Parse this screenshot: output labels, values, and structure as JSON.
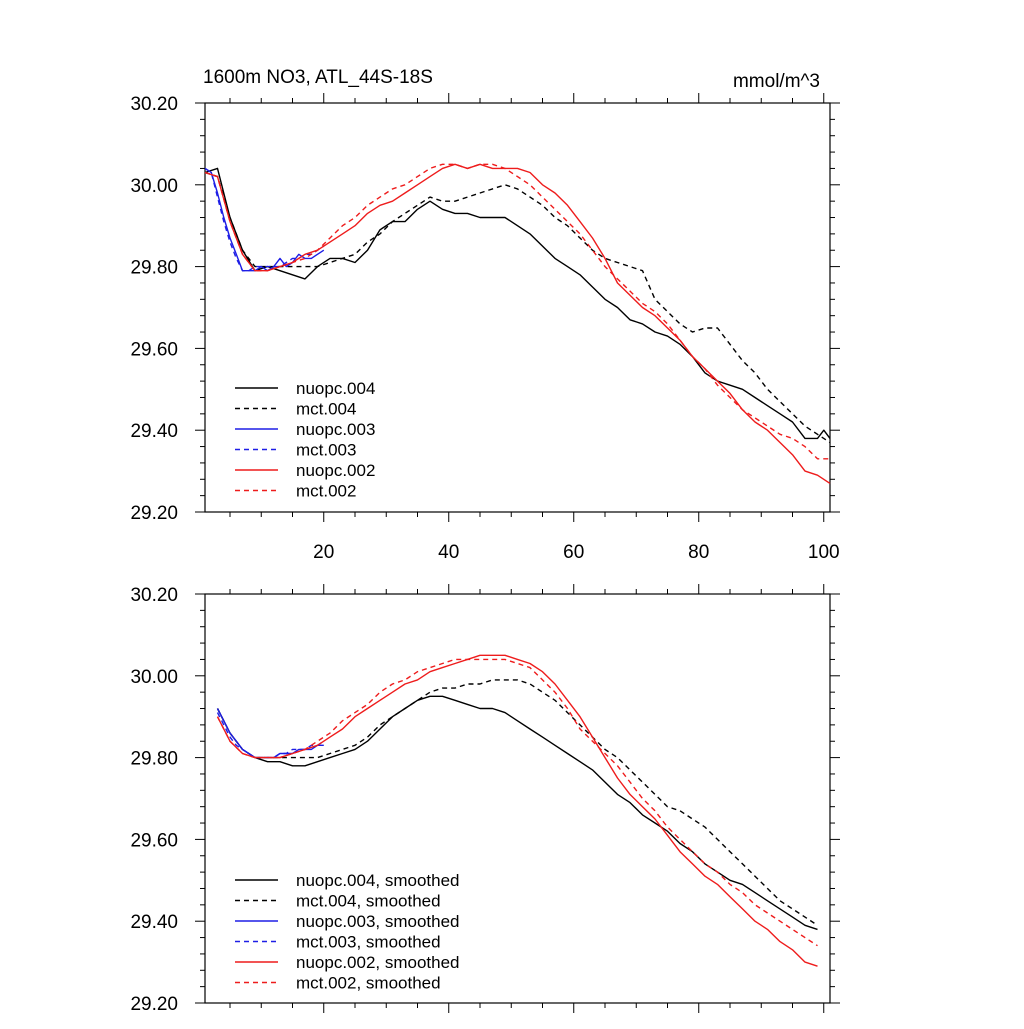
{
  "title_left": "1600m NO3, ATL_44S-18S",
  "title_right": "mmol/m^3",
  "colors": {
    "black": "#000000",
    "blue": "#1e1ee6",
    "red": "#ee1c1c"
  },
  "chart_data": [
    {
      "type": "line",
      "title": "1600m NO3, ATL_44S-18S",
      "units": "mmol/m^3",
      "xlim": [
        1,
        101
      ],
      "ylim": [
        29.2,
        30.2
      ],
      "xticks": [
        "20",
        "40",
        "60",
        "80",
        "100"
      ],
      "yticks": [
        "30.20",
        "30.00",
        "29.80",
        "29.60",
        "29.40",
        "29.20"
      ],
      "legend_position": "lower-left",
      "series": [
        {
          "name": "nuopc.004",
          "color": "#000000",
          "dash": "solid",
          "x": [
            1,
            3,
            5,
            7,
            9,
            11,
            13,
            15,
            17,
            19,
            21,
            23,
            25,
            27,
            29,
            31,
            33,
            35,
            37,
            39,
            41,
            43,
            45,
            47,
            49,
            51,
            53,
            55,
            57,
            59,
            61,
            63,
            65,
            67,
            69,
            71,
            73,
            75,
            77,
            79,
            81,
            83,
            85,
            87,
            89,
            91,
            93,
            95,
            97,
            99,
            100,
            101
          ],
          "y": [
            30.03,
            30.04,
            29.92,
            29.84,
            29.79,
            29.8,
            29.79,
            29.78,
            29.77,
            29.8,
            29.82,
            29.82,
            29.81,
            29.84,
            29.89,
            29.91,
            29.91,
            29.94,
            29.96,
            29.94,
            29.93,
            29.93,
            29.92,
            29.92,
            29.92,
            29.9,
            29.88,
            29.85,
            29.82,
            29.8,
            29.78,
            29.75,
            29.72,
            29.7,
            29.67,
            29.66,
            29.64,
            29.63,
            29.61,
            29.58,
            29.54,
            29.52,
            29.51,
            29.5,
            29.48,
            29.46,
            29.44,
            29.42,
            29.38,
            29.38,
            29.4,
            29.38
          ]
        },
        {
          "name": "mct.004",
          "color": "#000000",
          "dash": "dashed",
          "x": [
            1,
            3,
            5,
            7,
            9,
            11,
            13,
            15,
            17,
            19,
            21,
            23,
            25,
            27,
            29,
            31,
            33,
            35,
            37,
            39,
            41,
            43,
            45,
            47,
            49,
            51,
            53,
            55,
            57,
            59,
            61,
            63,
            65,
            67,
            69,
            71,
            73,
            75,
            77,
            79,
            81,
            83,
            85,
            87,
            89,
            91,
            93,
            95,
            97,
            99,
            101
          ],
          "y": [
            30.03,
            30.02,
            29.92,
            29.84,
            29.8,
            29.8,
            29.8,
            29.8,
            29.8,
            29.8,
            29.81,
            29.82,
            29.83,
            29.86,
            29.88,
            29.91,
            29.93,
            29.95,
            29.97,
            29.96,
            29.96,
            29.97,
            29.98,
            29.99,
            30.0,
            29.99,
            29.97,
            29.95,
            29.92,
            29.9,
            29.87,
            29.84,
            29.82,
            29.81,
            29.8,
            29.79,
            29.72,
            29.69,
            29.66,
            29.64,
            29.65,
            29.65,
            29.61,
            29.57,
            29.54,
            29.5,
            29.47,
            29.44,
            29.41,
            29.39,
            29.37
          ]
        },
        {
          "name": "nuopc.003",
          "color": "#1e1ee6",
          "dash": "solid",
          "x": [
            1,
            2,
            3,
            4,
            5,
            6,
            7,
            8,
            9,
            10,
            11,
            12,
            13,
            14,
            15,
            16,
            17,
            18,
            19,
            20
          ],
          "y": [
            30.04,
            30.03,
            29.98,
            29.92,
            29.87,
            29.83,
            29.79,
            29.79,
            29.79,
            29.8,
            29.79,
            29.8,
            29.82,
            29.8,
            29.81,
            29.83,
            29.82,
            29.82,
            29.83,
            29.84
          ]
        },
        {
          "name": "mct.003",
          "color": "#1e1ee6",
          "dash": "dashed",
          "x": [
            1,
            2,
            3,
            4,
            5,
            6,
            7,
            8,
            9,
            10,
            11,
            12,
            13,
            14,
            15,
            16,
            17,
            18,
            19,
            20
          ],
          "y": [
            30.04,
            30.03,
            29.97,
            29.91,
            29.86,
            29.82,
            29.79,
            29.79,
            29.8,
            29.8,
            29.8,
            29.8,
            29.8,
            29.81,
            29.82,
            29.82,
            29.83,
            29.83,
            29.84,
            29.85
          ]
        },
        {
          "name": "nuopc.002",
          "color": "#ee1c1c",
          "dash": "solid",
          "x": [
            1,
            3,
            5,
            7,
            9,
            11,
            13,
            15,
            17,
            19,
            21,
            23,
            25,
            27,
            29,
            31,
            33,
            35,
            37,
            39,
            41,
            43,
            45,
            47,
            49,
            51,
            53,
            55,
            57,
            59,
            61,
            63,
            65,
            67,
            69,
            71,
            73,
            75,
            77,
            79,
            81,
            83,
            85,
            87,
            89,
            91,
            93,
            95,
            97,
            99,
            101
          ],
          "y": [
            30.03,
            30.02,
            29.91,
            29.83,
            29.79,
            29.79,
            29.8,
            29.81,
            29.83,
            29.84,
            29.86,
            29.88,
            29.9,
            29.93,
            29.95,
            29.96,
            29.98,
            30.0,
            30.02,
            30.04,
            30.05,
            30.04,
            30.05,
            30.04,
            30.04,
            30.04,
            30.03,
            30.0,
            29.98,
            29.95,
            29.91,
            29.87,
            29.82,
            29.76,
            29.73,
            29.7,
            29.68,
            29.65,
            29.62,
            29.58,
            29.55,
            29.52,
            29.49,
            29.45,
            29.42,
            29.4,
            29.37,
            29.34,
            29.3,
            29.29,
            29.27
          ]
        },
        {
          "name": "mct.002",
          "color": "#ee1c1c",
          "dash": "dashed",
          "x": [
            1,
            3,
            5,
            7,
            9,
            11,
            13,
            15,
            17,
            19,
            21,
            23,
            25,
            27,
            29,
            31,
            33,
            35,
            37,
            39,
            41,
            43,
            45,
            47,
            49,
            51,
            53,
            55,
            57,
            59,
            61,
            63,
            65,
            67,
            69,
            71,
            73,
            75,
            77,
            79,
            81,
            83,
            85,
            87,
            89,
            91,
            93,
            95,
            97,
            99,
            101
          ],
          "y": [
            30.03,
            30.02,
            29.91,
            29.83,
            29.79,
            29.79,
            29.8,
            29.81,
            29.82,
            29.84,
            29.87,
            29.9,
            29.92,
            29.95,
            29.97,
            29.99,
            30.0,
            30.02,
            30.04,
            30.05,
            30.05,
            30.04,
            30.05,
            30.05,
            30.04,
            30.02,
            30.0,
            29.97,
            29.94,
            29.91,
            29.88,
            29.84,
            29.8,
            29.77,
            29.74,
            29.71,
            29.69,
            29.66,
            29.62,
            29.58,
            29.55,
            29.51,
            29.48,
            29.45,
            29.43,
            29.41,
            29.39,
            29.38,
            29.36,
            29.33,
            29.33
          ]
        }
      ]
    },
    {
      "type": "line",
      "xlim": [
        1,
        101
      ],
      "ylim": [
        29.2,
        30.2
      ],
      "yticks": [
        "30.20",
        "30.00",
        "29.80",
        "29.60",
        "29.40",
        "29.20"
      ],
      "legend_position": "lower-left",
      "series": [
        {
          "name": "nuopc.004, smoothed",
          "color": "#000000",
          "dash": "solid",
          "x": [
            3,
            5,
            7,
            9,
            11,
            13,
            15,
            17,
            19,
            21,
            23,
            25,
            27,
            29,
            31,
            33,
            35,
            37,
            39,
            41,
            43,
            45,
            47,
            49,
            51,
            53,
            55,
            57,
            59,
            61,
            63,
            65,
            67,
            69,
            71,
            73,
            75,
            77,
            79,
            81,
            83,
            85,
            87,
            89,
            91,
            93,
            95,
            97,
            99
          ],
          "y": [
            29.92,
            29.86,
            29.82,
            29.8,
            29.79,
            29.79,
            29.78,
            29.78,
            29.79,
            29.8,
            29.81,
            29.82,
            29.84,
            29.87,
            29.9,
            29.92,
            29.94,
            29.95,
            29.95,
            29.94,
            29.93,
            29.92,
            29.92,
            29.91,
            29.89,
            29.87,
            29.85,
            29.83,
            29.81,
            29.79,
            29.77,
            29.74,
            29.71,
            29.69,
            29.66,
            29.64,
            29.62,
            29.59,
            29.57,
            29.54,
            29.52,
            29.5,
            29.49,
            29.47,
            29.45,
            29.43,
            29.41,
            29.39,
            29.38
          ]
        },
        {
          "name": "mct.004, smoothed",
          "color": "#000000",
          "dash": "dashed",
          "x": [
            3,
            5,
            7,
            9,
            11,
            13,
            15,
            17,
            19,
            21,
            23,
            25,
            27,
            29,
            31,
            33,
            35,
            37,
            39,
            41,
            43,
            45,
            47,
            49,
            51,
            53,
            55,
            57,
            59,
            61,
            63,
            65,
            67,
            69,
            71,
            73,
            75,
            77,
            79,
            81,
            83,
            85,
            87,
            89,
            91,
            93,
            95,
            97,
            99
          ],
          "y": [
            29.92,
            29.86,
            29.82,
            29.8,
            29.8,
            29.8,
            29.8,
            29.8,
            29.8,
            29.81,
            29.82,
            29.83,
            29.85,
            29.88,
            29.9,
            29.92,
            29.94,
            29.96,
            29.97,
            29.97,
            29.98,
            29.98,
            29.99,
            29.99,
            29.99,
            29.98,
            29.96,
            29.94,
            29.91,
            29.88,
            29.85,
            29.82,
            29.8,
            29.77,
            29.74,
            29.71,
            29.68,
            29.67,
            29.65,
            29.63,
            29.6,
            29.57,
            29.54,
            29.51,
            29.48,
            29.45,
            29.43,
            29.41,
            29.39
          ]
        },
        {
          "name": "nuopc.003, smoothed",
          "color": "#1e1ee6",
          "dash": "solid",
          "x": [
            3,
            4,
            5,
            6,
            7,
            8,
            9,
            10,
            11,
            12,
            13,
            14,
            15,
            16,
            17,
            18,
            19,
            20
          ],
          "y": [
            29.92,
            29.89,
            29.86,
            29.84,
            29.82,
            29.81,
            29.8,
            29.8,
            29.8,
            29.8,
            29.81,
            29.81,
            29.81,
            29.82,
            29.82,
            29.82,
            29.83,
            29.83
          ]
        },
        {
          "name": "mct.003, smoothed",
          "color": "#1e1ee6",
          "dash": "dashed",
          "x": [
            3,
            4,
            5,
            6,
            7,
            8,
            9,
            10,
            11,
            12,
            13,
            14,
            15,
            16,
            17,
            18,
            19,
            20
          ],
          "y": [
            29.91,
            29.88,
            29.85,
            29.83,
            29.82,
            29.81,
            29.8,
            29.8,
            29.8,
            29.8,
            29.81,
            29.81,
            29.82,
            29.82,
            29.82,
            29.83,
            29.83,
            29.84
          ]
        },
        {
          "name": "nuopc.002, smoothed",
          "color": "#ee1c1c",
          "dash": "solid",
          "x": [
            3,
            5,
            7,
            9,
            11,
            13,
            15,
            17,
            19,
            21,
            23,
            25,
            27,
            29,
            31,
            33,
            35,
            37,
            39,
            41,
            43,
            45,
            47,
            49,
            51,
            53,
            55,
            57,
            59,
            61,
            63,
            65,
            67,
            69,
            71,
            73,
            75,
            77,
            79,
            81,
            83,
            85,
            87,
            89,
            91,
            93,
            95,
            97,
            99
          ],
          "y": [
            29.9,
            29.84,
            29.81,
            29.8,
            29.8,
            29.8,
            29.81,
            29.82,
            29.83,
            29.85,
            29.87,
            29.9,
            29.92,
            29.94,
            29.96,
            29.98,
            29.99,
            30.01,
            30.02,
            30.03,
            30.04,
            30.05,
            30.05,
            30.05,
            30.04,
            30.03,
            30.01,
            29.98,
            29.94,
            29.9,
            29.85,
            29.8,
            29.75,
            29.71,
            29.68,
            29.65,
            29.61,
            29.57,
            29.54,
            29.51,
            29.49,
            29.46,
            29.43,
            29.4,
            29.38,
            29.35,
            29.33,
            29.3,
            29.29
          ]
        },
        {
          "name": "mct.002, smoothed",
          "color": "#ee1c1c",
          "dash": "dashed",
          "x": [
            3,
            5,
            7,
            9,
            11,
            13,
            15,
            17,
            19,
            21,
            23,
            25,
            27,
            29,
            31,
            33,
            35,
            37,
            39,
            41,
            43,
            45,
            47,
            49,
            51,
            53,
            55,
            57,
            59,
            61,
            63,
            65,
            67,
            69,
            71,
            73,
            75,
            77,
            79,
            81,
            83,
            85,
            87,
            89,
            91,
            93,
            95,
            97,
            99
          ],
          "y": [
            29.9,
            29.84,
            29.81,
            29.8,
            29.8,
            29.8,
            29.81,
            29.82,
            29.84,
            29.86,
            29.89,
            29.91,
            29.93,
            29.96,
            29.98,
            29.99,
            30.01,
            30.02,
            30.03,
            30.04,
            30.04,
            30.04,
            30.04,
            30.04,
            30.03,
            30.02,
            29.99,
            29.96,
            29.92,
            29.87,
            29.84,
            29.81,
            29.78,
            29.74,
            29.7,
            29.67,
            29.63,
            29.6,
            29.57,
            29.54,
            29.52,
            29.49,
            29.47,
            29.44,
            29.42,
            29.4,
            29.38,
            29.36,
            29.34
          ]
        }
      ]
    }
  ]
}
